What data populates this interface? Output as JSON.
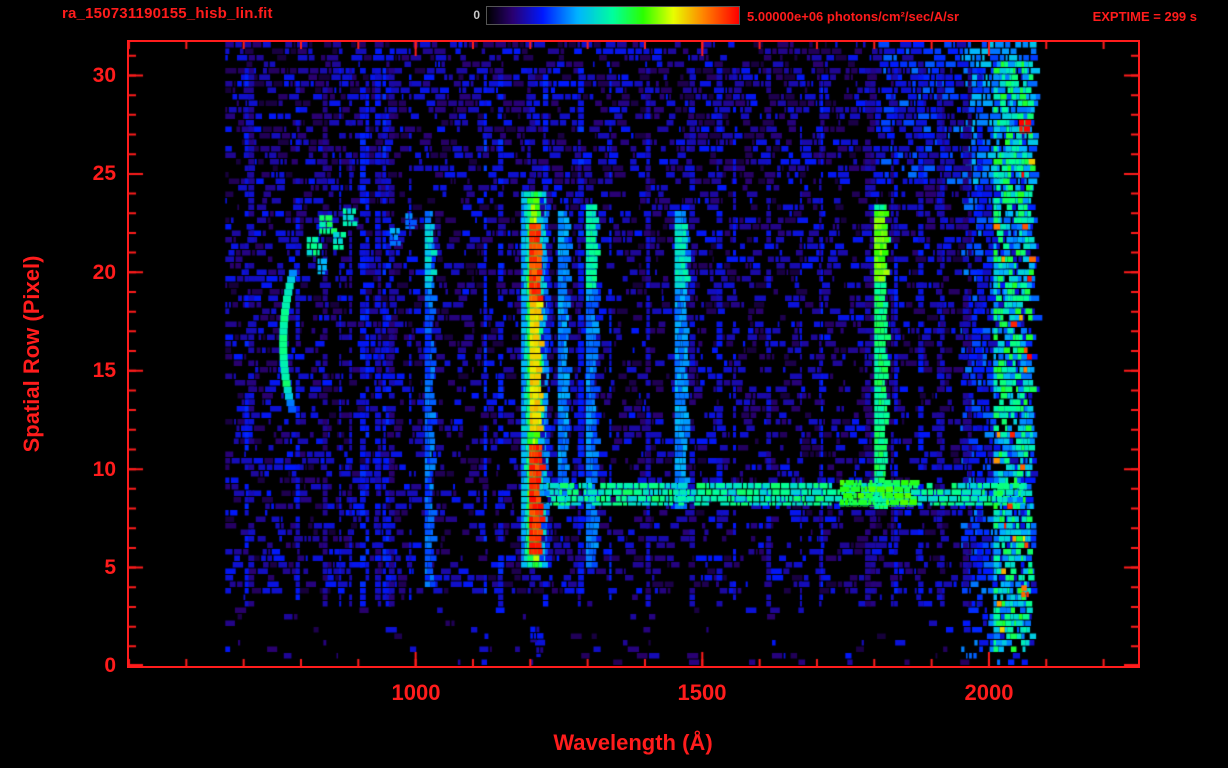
{
  "header": {
    "filename": "ra_150731190155_hisb_lin.fit",
    "colorbar_min_label": "0",
    "colorbar_max_label": "5.00000e+06 photons/cm²/sec/A/sr",
    "exptime_label": "EXPTIME = 299 s"
  },
  "colors": {
    "annotation": "#ff1c1c",
    "frame": "#ff1c1c",
    "background": "#000000",
    "colorbar_min_label": "#c8c8c8"
  },
  "chart_data": {
    "type": "heatmap",
    "title": "ra_150731190155_hisb_lin.fit",
    "xlabel": "Wavelength (Å)",
    "ylabel": "Spatial Row (Pixel)",
    "xlim": [
      500,
      2260
    ],
    "ylim": [
      0,
      31.7
    ],
    "x_ticks": [
      1000,
      1500,
      2000
    ],
    "x_tick_labels": [
      "1000",
      "1500",
      "2000"
    ],
    "x_minor_step": 100,
    "y_ticks": [
      0,
      5,
      10,
      15,
      20,
      25,
      30
    ],
    "y_tick_labels": [
      "0",
      "5",
      "10",
      "15",
      "20",
      "25",
      "30"
    ],
    "y_minor_step": 1,
    "value_scale": {
      "min": 0,
      "max": 5000000,
      "units": "photons/cm²/sec/A/sr"
    },
    "exposure_seconds": 299,
    "data_lambda_range": [
      668,
      2074
    ],
    "colormap_stops": [
      [
        0.0,
        "#000000"
      ],
      [
        0.1,
        "#2a0070"
      ],
      [
        0.22,
        "#0018ff"
      ],
      [
        0.36,
        "#00b4ff"
      ],
      [
        0.5,
        "#00ff9d"
      ],
      [
        0.62,
        "#2bff00"
      ],
      [
        0.74,
        "#e8ff00"
      ],
      [
        0.86,
        "#ff8400"
      ],
      [
        1.0,
        "#ff0000"
      ]
    ],
    "noise": {
      "seed": 20150731,
      "stripes": 42
    },
    "features": [
      {
        "type": "vband",
        "l0": 1016,
        "l1": 1027,
        "r0": 4.0,
        "r1": 23.0,
        "i": 0.28,
        "jitter": 0.1
      },
      {
        "type": "vband",
        "l0": 1016,
        "l1": 1027,
        "r0": 19.0,
        "r1": 22.5,
        "i": 0.42,
        "jitter": 0.08
      },
      {
        "type": "vband",
        "l0": 1248,
        "l1": 1263,
        "r0": 8.0,
        "r1": 23.0,
        "i": 0.32,
        "jitter": 0.1
      },
      {
        "type": "vband",
        "l0": 1297,
        "l1": 1312,
        "r0": 5.0,
        "r1": 23.5,
        "i": 0.3,
        "jitter": 0.1
      },
      {
        "type": "vband",
        "l0": 1297,
        "l1": 1312,
        "r0": 19.0,
        "r1": 23.5,
        "i": 0.48,
        "jitter": 0.08
      },
      {
        "type": "vband",
        "l0": 1452,
        "l1": 1470,
        "r0": 8.0,
        "r1": 23.0,
        "i": 0.33,
        "jitter": 0.1
      },
      {
        "type": "vband",
        "l0": 1452,
        "l1": 1470,
        "r0": 19.0,
        "r1": 22.5,
        "i": 0.45,
        "jitter": 0.08
      },
      {
        "type": "vband",
        "l0": 1800,
        "l1": 1818,
        "r0": 8.0,
        "r1": 23.5,
        "i": 0.52,
        "jitter": 0.1
      },
      {
        "type": "vband",
        "l0": 1800,
        "l1": 1818,
        "r0": 19.5,
        "r1": 23.2,
        "i": 0.66,
        "jitter": 0.08
      },
      {
        "type": "hband",
        "l0": 1228,
        "l1": 2058,
        "r0": 8.15,
        "r1": 9.3,
        "i": 0.48,
        "jitter": 0.14
      },
      {
        "type": "hband",
        "l0": 1740,
        "l1": 1862,
        "r0": 8.1,
        "r1": 9.45,
        "i": 0.6,
        "jitter": 0.1
      },
      {
        "type": "vband",
        "l0": 2008,
        "l1": 2072,
        "r0": 0.5,
        "r1": 30.6,
        "i": 0.45,
        "jitter": 0.3,
        "gap": true,
        "spike": true
      },
      {
        "type": "arc",
        "lc": 762,
        "rc": 16.6,
        "k": 1.35,
        "w": 14,
        "r0": 13.2,
        "r1": 20.3,
        "i": 0.5
      },
      {
        "type": "blob",
        "l": 820,
        "r": 21.3,
        "wl": 20,
        "hr": 1.0,
        "i": 0.48
      },
      {
        "type": "blob",
        "l": 843,
        "r": 22.4,
        "wl": 22,
        "hr": 1.0,
        "i": 0.52
      },
      {
        "type": "blob",
        "l": 864,
        "r": 21.6,
        "wl": 16,
        "hr": 0.9,
        "i": 0.46
      },
      {
        "type": "blob",
        "l": 882,
        "r": 22.8,
        "wl": 18,
        "hr": 0.9,
        "i": 0.44
      },
      {
        "type": "blob",
        "l": 836,
        "r": 20.3,
        "wl": 14,
        "hr": 0.8,
        "i": 0.38
      },
      {
        "type": "blob",
        "l": 962,
        "r": 21.8,
        "wl": 14,
        "hr": 0.9,
        "i": 0.34
      },
      {
        "type": "blob",
        "l": 988,
        "r": 22.6,
        "wl": 12,
        "hr": 0.8,
        "i": 0.3
      },
      {
        "type": "vband",
        "l0": 1184,
        "l1": 1230,
        "r0": 5.0,
        "r1": 24.0,
        "i": 0.55,
        "fade": true,
        "jitter": 0.1
      },
      {
        "type": "vband",
        "l0": 1195,
        "l1": 1219,
        "r0": 5.2,
        "r1": 23.9,
        "i": 0.72,
        "fade": true,
        "jitter": 0.08
      },
      {
        "type": "vband",
        "l0": 1199,
        "l1": 1215,
        "r0": 12.0,
        "r1": 18.6,
        "i": 0.78,
        "jitter": 0.07
      },
      {
        "type": "vband",
        "l0": 1198,
        "l1": 1216,
        "r0": 5.6,
        "r1": 11.3,
        "i": 0.95,
        "jitter": 0.09
      },
      {
        "type": "vband",
        "l0": 1198,
        "l1": 1216,
        "r0": 18.6,
        "r1": 22.4,
        "i": 0.93,
        "jitter": 0.09
      },
      {
        "type": "blob",
        "l": 1207,
        "r": 1.6,
        "wl": 14,
        "hr": 0.8,
        "i": 0.18
      },
      {
        "type": "blob",
        "l": 1215,
        "r": 0.7,
        "wl": 9,
        "hr": 0.5,
        "i": 0.15
      },
      {
        "type": "blob",
        "l": 2060,
        "r": 27.4,
        "wl": 14,
        "hr": 0.7,
        "i": 0.99
      },
      {
        "type": "blob",
        "l": 2062,
        "r": 3.8,
        "wl": 11,
        "hr": 0.6,
        "i": 0.9
      }
    ]
  }
}
